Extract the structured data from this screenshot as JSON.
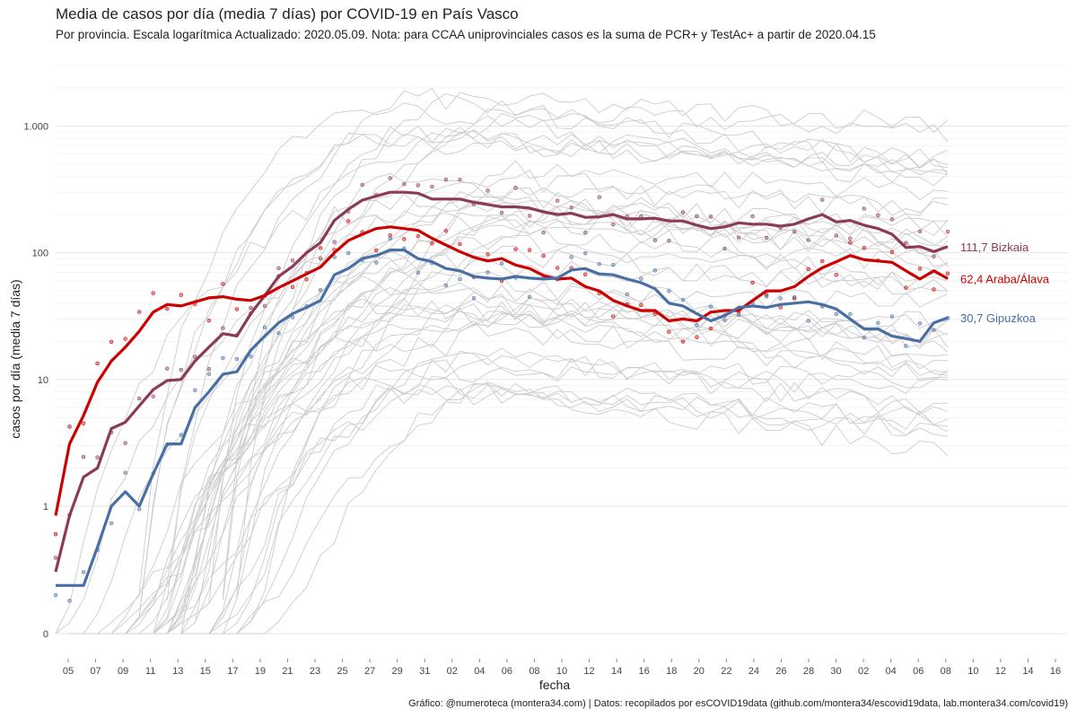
{
  "title": "Media de casos por día (media 7 días) por COVID-19 en País Vasco",
  "subtitle": "Por provincia. Escala logarítmica  Actualizado: 2020.05.09. Nota: para CCAA uniprovinciales casos es la suma de PCR+ y TestAc+ a partir de 2020.04.15",
  "caption": "Gráfico: @numeroteca (montera34.com) | Datos: recopilados por esCOVID19data (github.com/montera34/escovid19data, lab.montera34.com/covid19)",
  "colors": {
    "bizkaia": "#8b3a5a",
    "araba": "#cc0000",
    "gipuzkoa": "#4a6fa5",
    "background_lines": "#cccccc"
  },
  "chart_data": {
    "type": "line",
    "title": "Media de casos por día (media 7 días) por COVID-19 en País Vasco",
    "xlabel": "fecha",
    "ylabel": "casos por día (media 7 días)",
    "y_scale": "log",
    "y_ticks": [
      0,
      1,
      10,
      100,
      1000
    ],
    "y_tick_labels": [
      "0",
      "1",
      "10",
      "100",
      "1.000"
    ],
    "x_tick_labels": [
      "05",
      "07",
      "09",
      "11",
      "13",
      "15",
      "17",
      "19",
      "21",
      "23",
      "25",
      "27",
      "29",
      "31",
      "02",
      "04",
      "06",
      "08",
      "10",
      "12",
      "14",
      "16",
      "18",
      "20",
      "22",
      "24",
      "26",
      "28",
      "30",
      "02",
      "04",
      "06",
      "08",
      "10",
      "12",
      "14",
      "16"
    ],
    "x_start": "2020-03-04",
    "x_end": "2020-05-08",
    "grid": true,
    "legend": "end-of-line labels",
    "series": [
      {
        "name": "Bizkaia",
        "end_label": "111,7 Bizkaia",
        "values": [
          0.4,
          0.9,
          1.7,
          2,
          4.1,
          4.6,
          6.2,
          8.3,
          9.8,
          10,
          14,
          18,
          23,
          22,
          33,
          46,
          65,
          78,
          100,
          120,
          180,
          220,
          260,
          280,
          300,
          300,
          295,
          265,
          265,
          265,
          250,
          240,
          230,
          230,
          225,
          210,
          200,
          205,
          190,
          192,
          200,
          185,
          185,
          187,
          178,
          178,
          165,
          155,
          160,
          172,
          168,
          168,
          162,
          168,
          185,
          200,
          175,
          180,
          165,
          155,
          140,
          110,
          112,
          102,
          111.7
        ]
      },
      {
        "name": "Araba/Álava",
        "end_label": "62,4 Araba/Álava",
        "values": [
          0.9,
          3.1,
          5.2,
          9.5,
          14,
          18,
          24,
          34,
          39,
          38,
          41,
          44,
          45,
          43,
          42,
          46,
          53,
          60,
          68,
          77,
          100,
          125,
          140,
          155,
          160,
          155,
          150,
          130,
          115,
          102,
          92,
          86,
          90,
          80,
          75,
          66,
          62,
          63,
          54,
          50,
          42,
          38,
          35,
          35,
          29,
          30,
          29,
          34,
          35,
          35,
          42,
          50,
          50,
          54,
          65,
          76,
          85,
          95,
          88,
          86,
          84,
          72,
          62,
          72,
          62.4
        ]
      },
      {
        "name": "Gipuzkoa",
        "end_label": "30,7 Gipuzkoa",
        "values": [
          0.3,
          0.3,
          0.3,
          0.6,
          1,
          1.3,
          1,
          1.8,
          3.1,
          3.1,
          6,
          8,
          11,
          11.5,
          17,
          22,
          28,
          33,
          37,
          42,
          67,
          75,
          90,
          95,
          105,
          105,
          90,
          85,
          75,
          72,
          65,
          63,
          62,
          65,
          63,
          62,
          63,
          73,
          75,
          68,
          67,
          62,
          58,
          52,
          40,
          38,
          33,
          29,
          32,
          37,
          38,
          37,
          39,
          40,
          41,
          39,
          36,
          30,
          25,
          25,
          22,
          21,
          20,
          28,
          30.7
        ]
      }
    ]
  }
}
